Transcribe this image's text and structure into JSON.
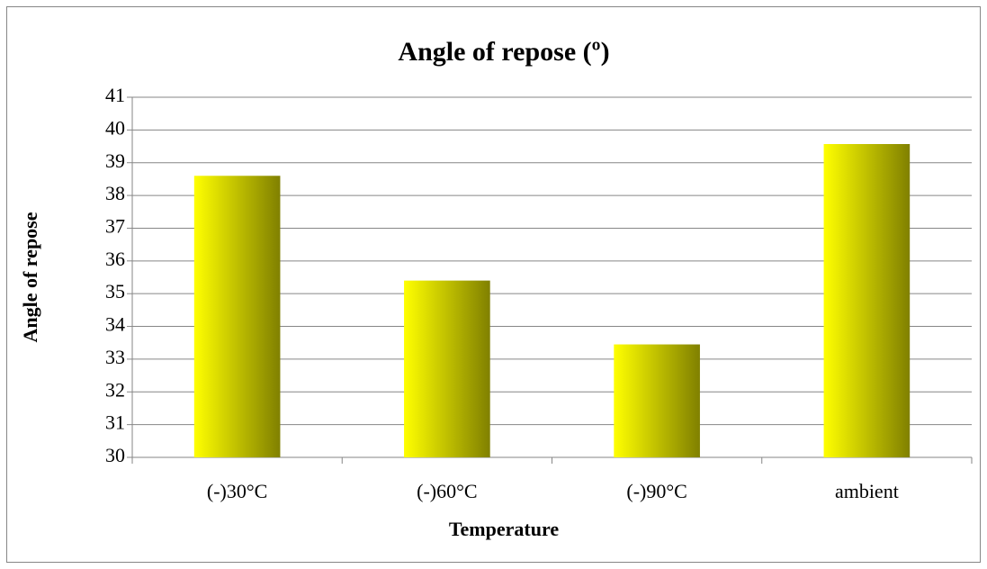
{
  "chart_data": {
    "type": "bar",
    "title": "Angle of repose (º)",
    "x_label": "Temperature",
    "y_label": "Angle of repose",
    "categories": [
      "(-)30°C",
      "(-)60°C",
      "(-)90°C",
      "ambient"
    ],
    "values": [
      38.6,
      35.4,
      33.45,
      39.57
    ],
    "color": "#ffff00",
    "gradient_end": "#808000",
    "ylim": [
      30,
      41
    ],
    "yticks": [
      30,
      31,
      32,
      33,
      34,
      35,
      36,
      37,
      38,
      39,
      40,
      41
    ],
    "grid": true
  }
}
